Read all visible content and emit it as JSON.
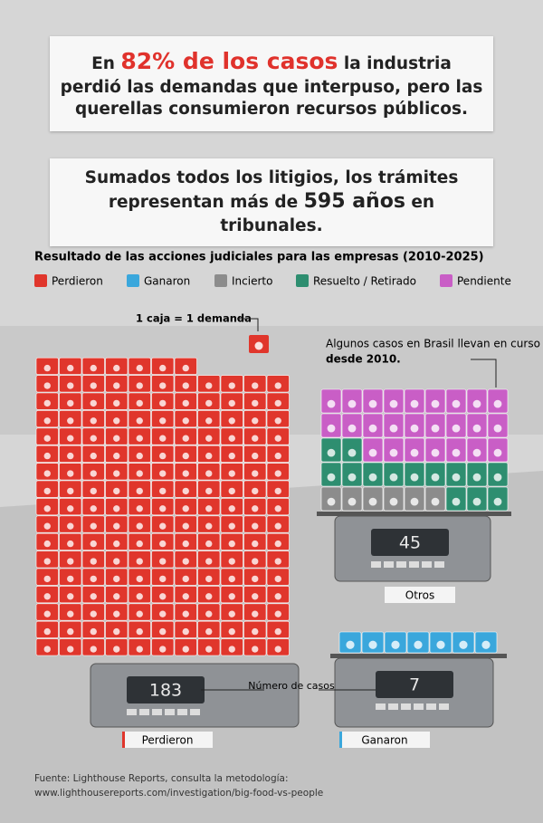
{
  "headline": {
    "before": "En",
    "highlight": "82% de los casos",
    "after": "la industria perdió las demandas que interpuso, pero las querellas consumieron recursos públicos."
  },
  "subhead": {
    "before": "Sumados todos los litigios, los trámites representan más de",
    "highlight": "595 años",
    "after": "en tribunales."
  },
  "chart_data": {
    "type": "unit",
    "title": "Resultado de las acciones judiciales para las empresas (2010-2025)",
    "series": [
      {
        "name": "Perdieron",
        "color": "#e0362c",
        "values": [
          183
        ]
      },
      {
        "name": "Ganaron",
        "color": "#3aa7dc",
        "values": [
          7
        ]
      },
      {
        "name": "Incierto",
        "color": "#8c8c8c",
        "values": [
          6
        ]
      },
      {
        "name": "Resuelto / Retirado",
        "color": "#2e8e70",
        "values": [
          14
        ]
      },
      {
        "name": "Pendiente",
        "color": "#c95ec6",
        "values": [
          25
        ]
      }
    ],
    "unit_note": "1 caja = 1 demanda",
    "annotation": {
      "before": "Algunos casos en Brasil llevan en curso",
      "bold": "desde 2010."
    },
    "scales": [
      {
        "label": "Perdieron",
        "count": 183
      },
      {
        "label": "Otros",
        "count": 45
      },
      {
        "label": "Ganaron",
        "count": 7
      }
    ],
    "scale_note": "Número de casos",
    "source": [
      "Fuente: Lighthouse Reports, consulta la metodología:",
      "www.lighthousereports.com/investigation/big-food-vs-people"
    ]
  }
}
